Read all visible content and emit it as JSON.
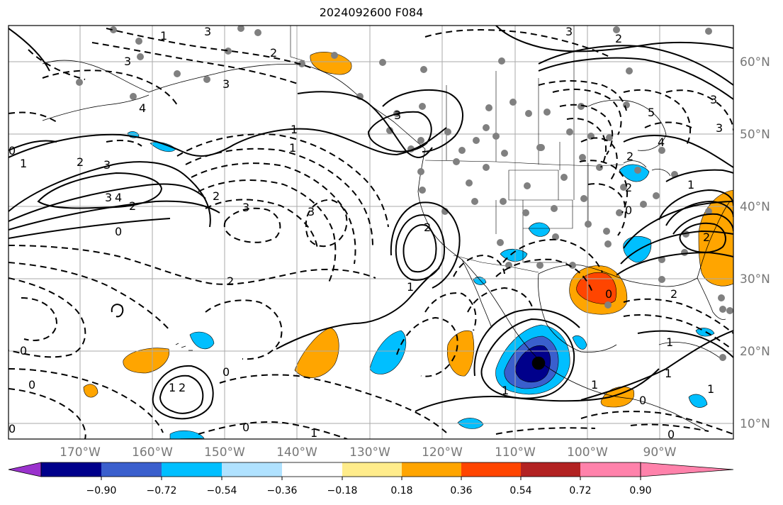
{
  "title": "2024092600 F084",
  "lon_labels": [
    "170°W",
    "160°W",
    "150°W",
    "140°W",
    "130°W",
    "120°W",
    "110°W",
    "100°W",
    "90°W"
  ],
  "lat_labels": [
    "60°N",
    "50°N",
    "40°N",
    "30°N",
    "20°N",
    "10°N"
  ],
  "colorbar": {
    "colors": [
      "#9a32cd",
      "#00008b",
      "#3a5fcd",
      "#00bfff",
      "#b0e2ff",
      "#ffffff",
      "#ffec8b",
      "#ffa500",
      "#ff4500",
      "#b22222",
      "#ff82ab"
    ],
    "tick_labels": [
      "−0.90",
      "−0.72",
      "−0.54",
      "−0.36",
      "−0.18",
      "0.18",
      "0.36",
      "0.54",
      "0.72",
      "0.90"
    ]
  },
  "contour_labels": [
    "3",
    "3",
    "2",
    "1",
    "4",
    "2",
    "1",
    "1",
    "3",
    "2",
    "3",
    "3",
    "0",
    "0",
    "3",
    "4",
    "3",
    "2",
    "3",
    "2",
    "1",
    "1",
    "2",
    "0",
    "0",
    "1",
    "2",
    "0",
    "1",
    "1",
    "1",
    "1",
    "1",
    "0",
    "2",
    "2",
    "2",
    "0",
    "0",
    "0",
    "0",
    "5",
    "4",
    "2",
    "2",
    "3",
    "3",
    "3",
    "1",
    "1",
    "0"
  ]
}
